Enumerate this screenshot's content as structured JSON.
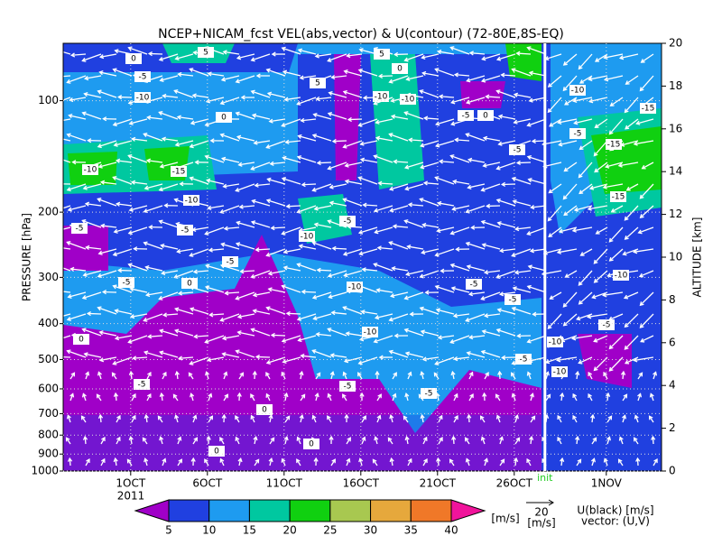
{
  "chart_data": {
    "type": "time-height",
    "title": "NCEP+NICAM_fcst VEL(abs,vector) & U(contour)   (72-80E,8S-EQ)",
    "ylabel": "PRESSURE [hPa]",
    "y2label": "ALTITUDE [km]",
    "y_scale": "log",
    "ylim": [
      1000,
      70
    ],
    "yticks": [
      100,
      200,
      300,
      400,
      500,
      600,
      700,
      800,
      900,
      1000
    ],
    "y2lim": [
      0,
      20
    ],
    "y2ticks": [
      0,
      2,
      4,
      6,
      8,
      10,
      12,
      14,
      16,
      18,
      20
    ],
    "xlim": [
      -4.4,
      34.6
    ],
    "xticks": [
      {
        "value": 0,
        "label": "1OCT"
      },
      {
        "value": 5,
        "label": "6OCT"
      },
      {
        "value": 10,
        "label": "11OCT"
      },
      {
        "value": 15,
        "label": "16OCT"
      },
      {
        "value": 20,
        "label": "21OCT"
      },
      {
        "value": 25,
        "label": "26OCT"
      },
      {
        "value": 31,
        "label": "1NOV"
      }
    ],
    "year_label": "2011",
    "init_x": 27,
    "init_label": "init",
    "grid": true,
    "colorbar": {
      "levels": [
        5,
        10,
        15,
        20,
        25,
        30,
        35,
        40
      ],
      "colors": [
        "#a000c8",
        "#2040e0",
        "#1e9bf0",
        "#00c8a0",
        "#10d010",
        "#a8c850",
        "#e6a83c",
        "#f07828",
        "#f0149b"
      ],
      "unit": "[m/s]"
    },
    "vector_legend": {
      "value": 20,
      "unit": "[m/s]"
    },
    "legend_notes": [
      "U(black) [m/s]",
      "vector: (U,V)"
    ],
    "contour_labels": [
      0,
      5,
      5,
      5,
      0,
      -5,
      -10,
      0,
      -10,
      -10,
      -5,
      0,
      -5,
      -10,
      -15,
      -10,
      -5,
      -5,
      -10,
      -5,
      -5,
      -5,
      0,
      -10,
      -5,
      -5,
      -10,
      -5,
      -5,
      -5,
      -5,
      0,
      0,
      0,
      0,
      -10,
      -10,
      -5,
      -15,
      -15,
      -10,
      -5,
      -10,
      -15
    ]
  }
}
